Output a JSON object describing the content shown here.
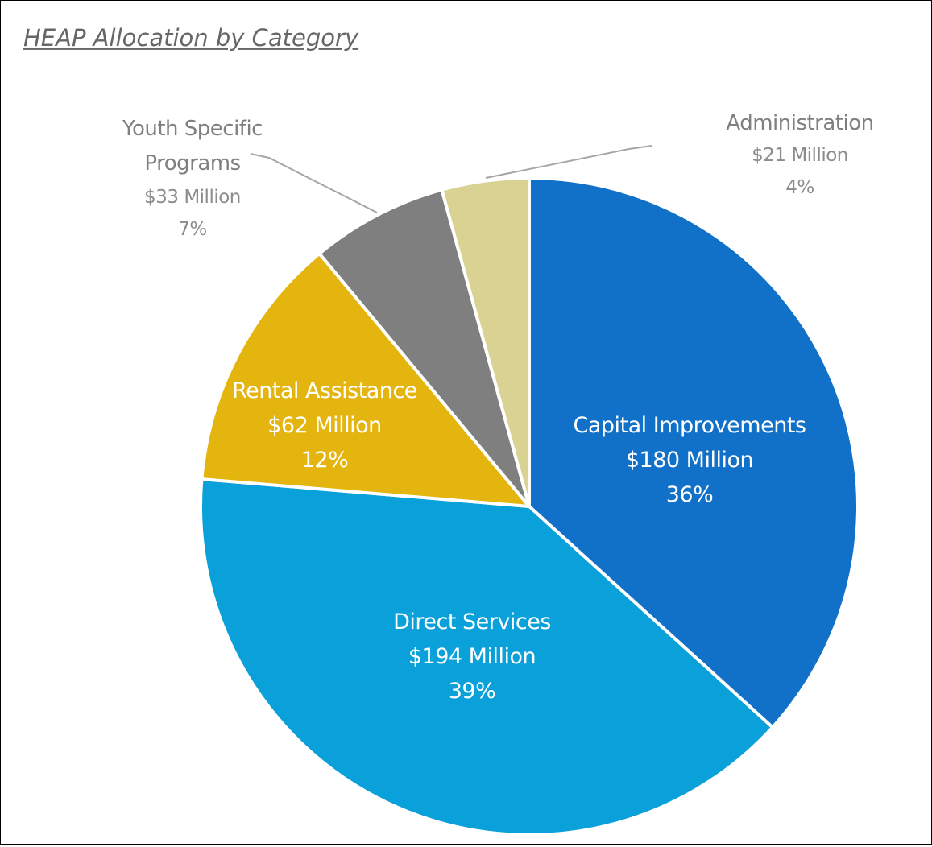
{
  "chart_data": {
    "type": "pie",
    "title": "HEAP Allocation by Category",
    "categories": [
      "Capital Improvements",
      "Direct Services",
      "Rental Assistance",
      "Youth Specific Programs",
      "Administration"
    ],
    "values": [
      180,
      194,
      62,
      33,
      21
    ],
    "value_labels": [
      "$180 Million",
      "$194 Million",
      "$62 Million",
      "$33 Million",
      "$21 Million"
    ],
    "percents": [
      36,
      39,
      12,
      7,
      4
    ],
    "percent_labels": [
      "36%",
      "39%",
      "12%",
      "7%",
      "4%"
    ],
    "colors": [
      "#1170c8",
      "#0aa0da",
      "#e5b50f",
      "#7f7f80",
      "#d9d293"
    ]
  }
}
